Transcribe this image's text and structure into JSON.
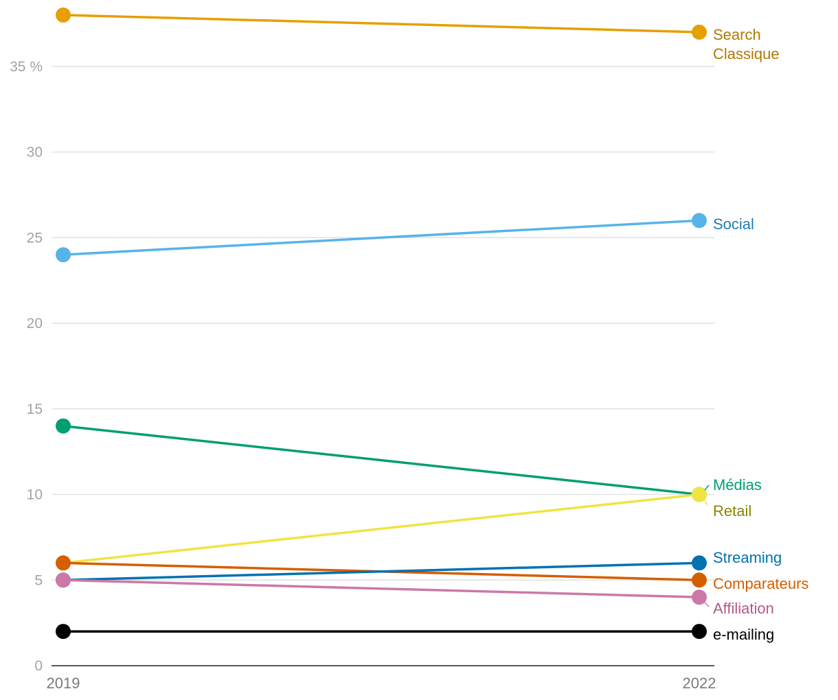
{
  "chart_data": {
    "type": "line",
    "chart_style": "slope",
    "x": [
      "2019",
      "2022"
    ],
    "ylim": [
      0,
      38
    ],
    "y_ticks": [
      0,
      5,
      10,
      15,
      20,
      25,
      30,
      35
    ],
    "y_tick_labels": [
      "0",
      "5",
      "10",
      "15",
      "20",
      "25",
      "30",
      "35 %"
    ],
    "grid": true,
    "legend": "direct labels at right end of lines",
    "series": [
      {
        "name": "Search Classique",
        "label_lines": [
          "Search",
          "Classique"
        ],
        "values": [
          38,
          37
        ],
        "color": "#E69F00",
        "label_color": "#B07A00"
      },
      {
        "name": "Social",
        "label_lines": [
          "Social"
        ],
        "values": [
          24,
          26
        ],
        "color": "#56B4E9",
        "label_color": "#1F7DB3"
      },
      {
        "name": "Médias",
        "label_lines": [
          "Médias"
        ],
        "values": [
          14,
          10
        ],
        "color": "#009E73",
        "label_color": "#009E73"
      },
      {
        "name": "Retail",
        "label_lines": [
          "Retail"
        ],
        "values": [
          6,
          10
        ],
        "color": "#F0E442",
        "label_color": "#8C8400"
      },
      {
        "name": "Streaming",
        "label_lines": [
          "Streaming"
        ],
        "values": [
          5,
          6
        ],
        "color": "#0072B2",
        "label_color": "#0072B2"
      },
      {
        "name": "Comparateurs",
        "label_lines": [
          "Comparateurs"
        ],
        "values": [
          6,
          5
        ],
        "color": "#D55E00",
        "label_color": "#D55E00"
      },
      {
        "name": "Affiliation",
        "label_lines": [
          "Affiliation"
        ],
        "values": [
          5,
          4
        ],
        "color": "#CC79A7",
        "label_color": "#B05A8C"
      },
      {
        "name": "e-mailing",
        "label_lines": [
          "e-mailing"
        ],
        "values": [
          2,
          2
        ],
        "color": "#000000",
        "label_color": "#000000"
      }
    ]
  }
}
